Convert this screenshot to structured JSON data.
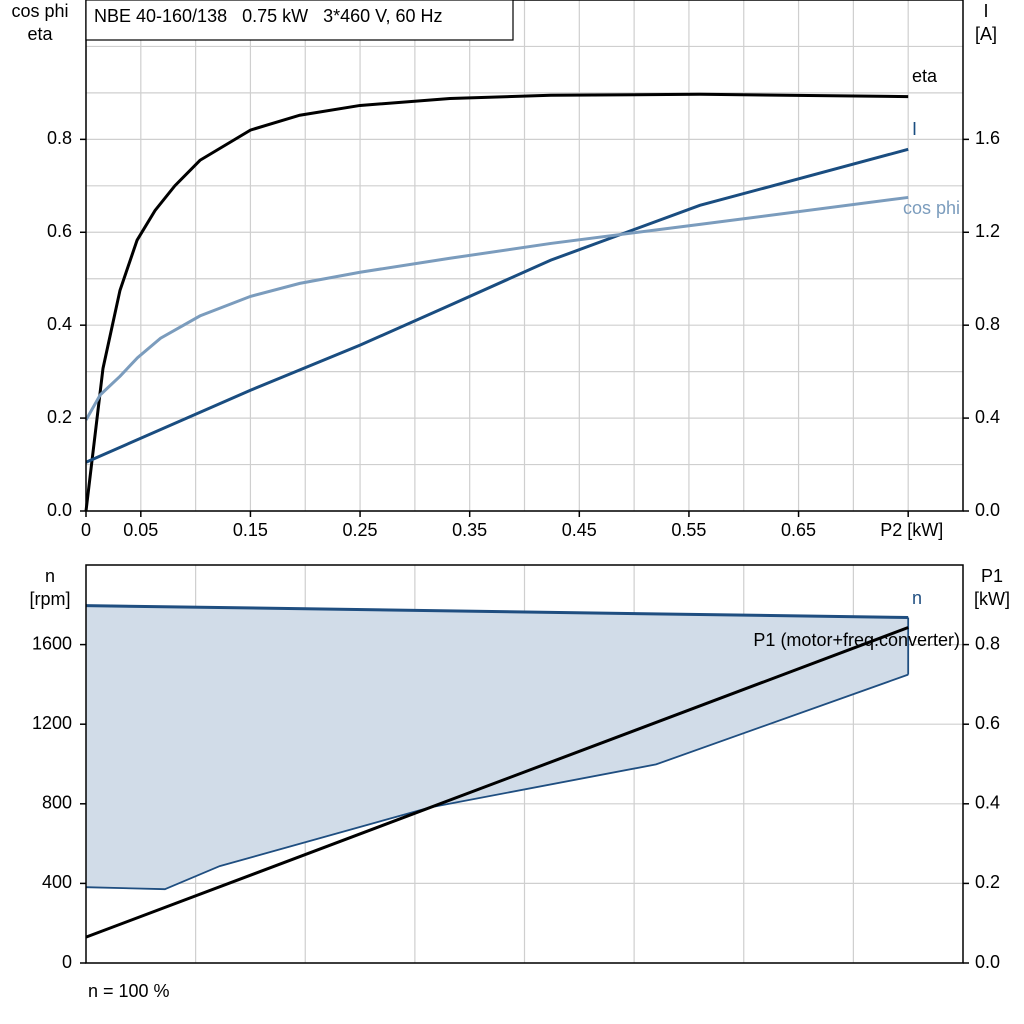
{
  "chart_data": [
    {
      "type": "line",
      "title": "NBE 40-160/138   0.75 kW   3*460 V, 60 Hz",
      "ylabel": [
        "cos phi",
        "eta"
      ],
      "y2label": [
        "I",
        "[A]"
      ],
      "xlim": [
        0,
        0.8
      ],
      "xticks": [
        0,
        0.05,
        0.15,
        0.25,
        0.35,
        0.45,
        0.55,
        0.65,
        {
          "value": 0.75,
          "label": "P2 [kW]"
        }
      ],
      "xgrid": [
        0.1,
        0.2,
        0.3,
        0.4,
        0.5,
        0.6,
        0.7
      ],
      "ylim": [
        0,
        1.1
      ],
      "yticks": [
        {
          "value": 0,
          "label": "0.0"
        },
        0.2,
        0.4,
        0.6,
        0.8
      ],
      "ygrid": [
        0.1,
        0.3,
        0.5,
        0.7,
        0.9,
        1.0
      ],
      "y2lim": [
        0,
        2.2
      ],
      "y2ticks": [
        {
          "value": 0,
          "label": "0.0"
        },
        0.4,
        0.8,
        1.2,
        1.6
      ],
      "grid": true,
      "series": [
        {
          "name": "eta",
          "color": "#000000",
          "x": [
            0,
            0.0155,
            0.031,
            0.0466,
            0.063,
            0.081,
            0.104,
            0.15,
            0.195,
            0.25,
            0.332,
            0.424,
            0.56,
            0.75
          ],
          "values": [
            0,
            0.307,
            0.475,
            0.583,
            0.647,
            0.7,
            0.755,
            0.82,
            0.852,
            0.873,
            0.888,
            0.895,
            0.897,
            0.892
          ]
        },
        {
          "name": "I",
          "color": "#1a4d80",
          "axis": "y2",
          "x": [
            0,
            0.15,
            0.25,
            0.332,
            0.424,
            0.56,
            0.75
          ],
          "values": [
            0.21,
            0.52,
            0.714,
            0.886,
            1.08,
            1.316,
            1.557
          ]
        },
        {
          "name": "cos phi",
          "color": "#7b9cbd",
          "x": [
            0,
            0.013,
            0.031,
            0.047,
            0.068,
            0.104,
            0.15,
            0.195,
            0.25,
            0.332,
            0.424,
            0.56,
            0.75
          ],
          "values": [
            0.196,
            0.25,
            0.29,
            0.33,
            0.372,
            0.42,
            0.462,
            0.49,
            0.514,
            0.544,
            0.576,
            0.617,
            0.675
          ]
        }
      ]
    },
    {
      "type": "line",
      "note": "n = 100 %",
      "ylabel": [
        "n",
        "[rpm]"
      ],
      "y2label": [
        "P1",
        "[kW]"
      ],
      "xlim": [
        0,
        0.8
      ],
      "xgrid": [
        0.1,
        0.2,
        0.3,
        0.4,
        0.5,
        0.6,
        0.7
      ],
      "ylim": [
        0,
        2000
      ],
      "yticks": [
        0,
        400,
        800,
        1200,
        1600
      ],
      "y2lim": [
        0,
        1.0
      ],
      "y2ticks": [
        {
          "value": 0,
          "label": "0.0"
        },
        0.2,
        0.4,
        0.6,
        0.8
      ],
      "grid": true,
      "series": [
        {
          "name": "n",
          "color": "#1f4e80",
          "fill": "#d1dce8",
          "x": [
            0,
            0.75
          ],
          "values": [
            1796,
            1736
          ],
          "lower_bound": {
            "x": [
              0,
              0.072,
              0.122,
              0.314,
              0.52,
              0.75
            ],
            "values": [
              381,
              371,
              487,
              782,
              998,
              1449
            ]
          }
        },
        {
          "name": "P1 (motor+freq.converter)",
          "color": "#000000",
          "axis": "y2",
          "x": [
            0,
            0.75
          ],
          "values": [
            0.065,
            0.843
          ]
        }
      ]
    }
  ]
}
